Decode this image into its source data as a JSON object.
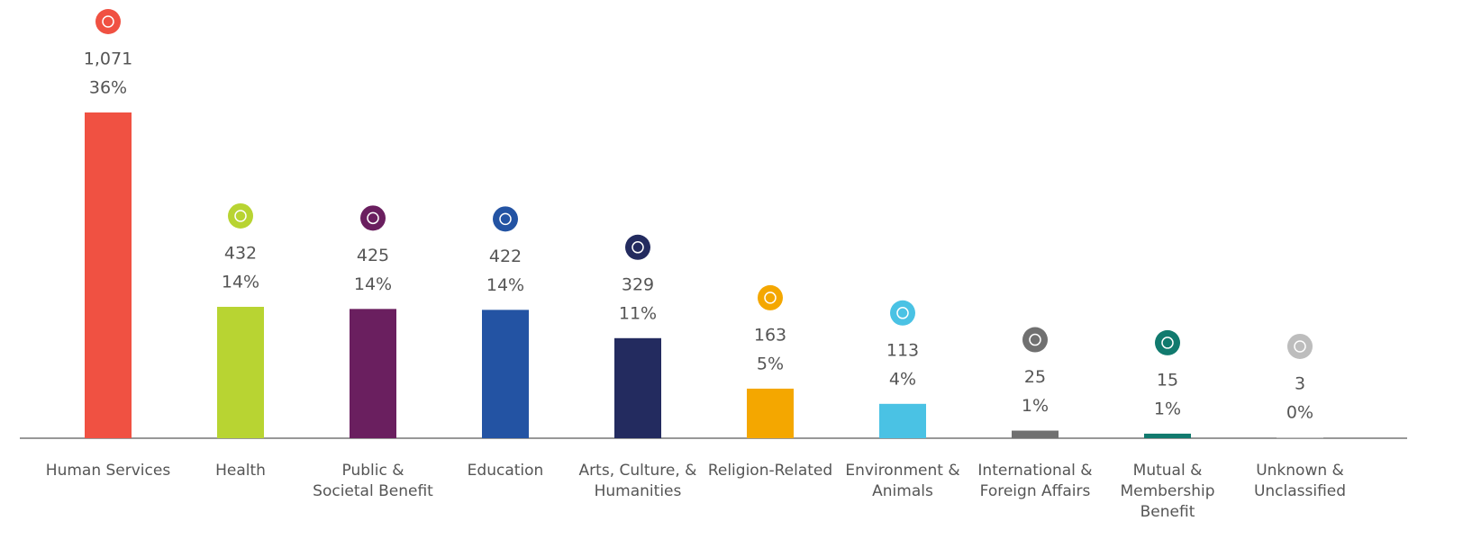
{
  "chart_data": {
    "type": "bar",
    "categories": [
      "Human Services",
      "Health",
      "Public & Societal Benefit",
      "Education",
      "Arts, Culture, & Humanities",
      "Religion-Related",
      "Environment & Animals",
      "International & Foreign Affairs",
      "Mutual & Membership Benefit",
      "Unknown & Unclassified"
    ],
    "values": [
      1071,
      432,
      425,
      422,
      329,
      163,
      113,
      25,
      15,
      3
    ],
    "value_labels": [
      "1,071",
      "432",
      "425",
      "422",
      "329",
      "163",
      "113",
      "25",
      "15",
      "3"
    ],
    "percents": [
      36,
      14,
      14,
      14,
      11,
      5,
      4,
      1,
      1,
      0
    ],
    "percent_labels": [
      "36%",
      "14%",
      "14%",
      "14%",
      "11%",
      "5%",
      "4%",
      "1%",
      "1%",
      "0%"
    ],
    "colors": [
      "#f05142",
      "#b8d432",
      "#6a1f5f",
      "#2353a3",
      "#232b5f",
      "#f4a700",
      "#4ac2e4",
      "#707070",
      "#117a6e",
      "#bdbdbd"
    ]
  }
}
